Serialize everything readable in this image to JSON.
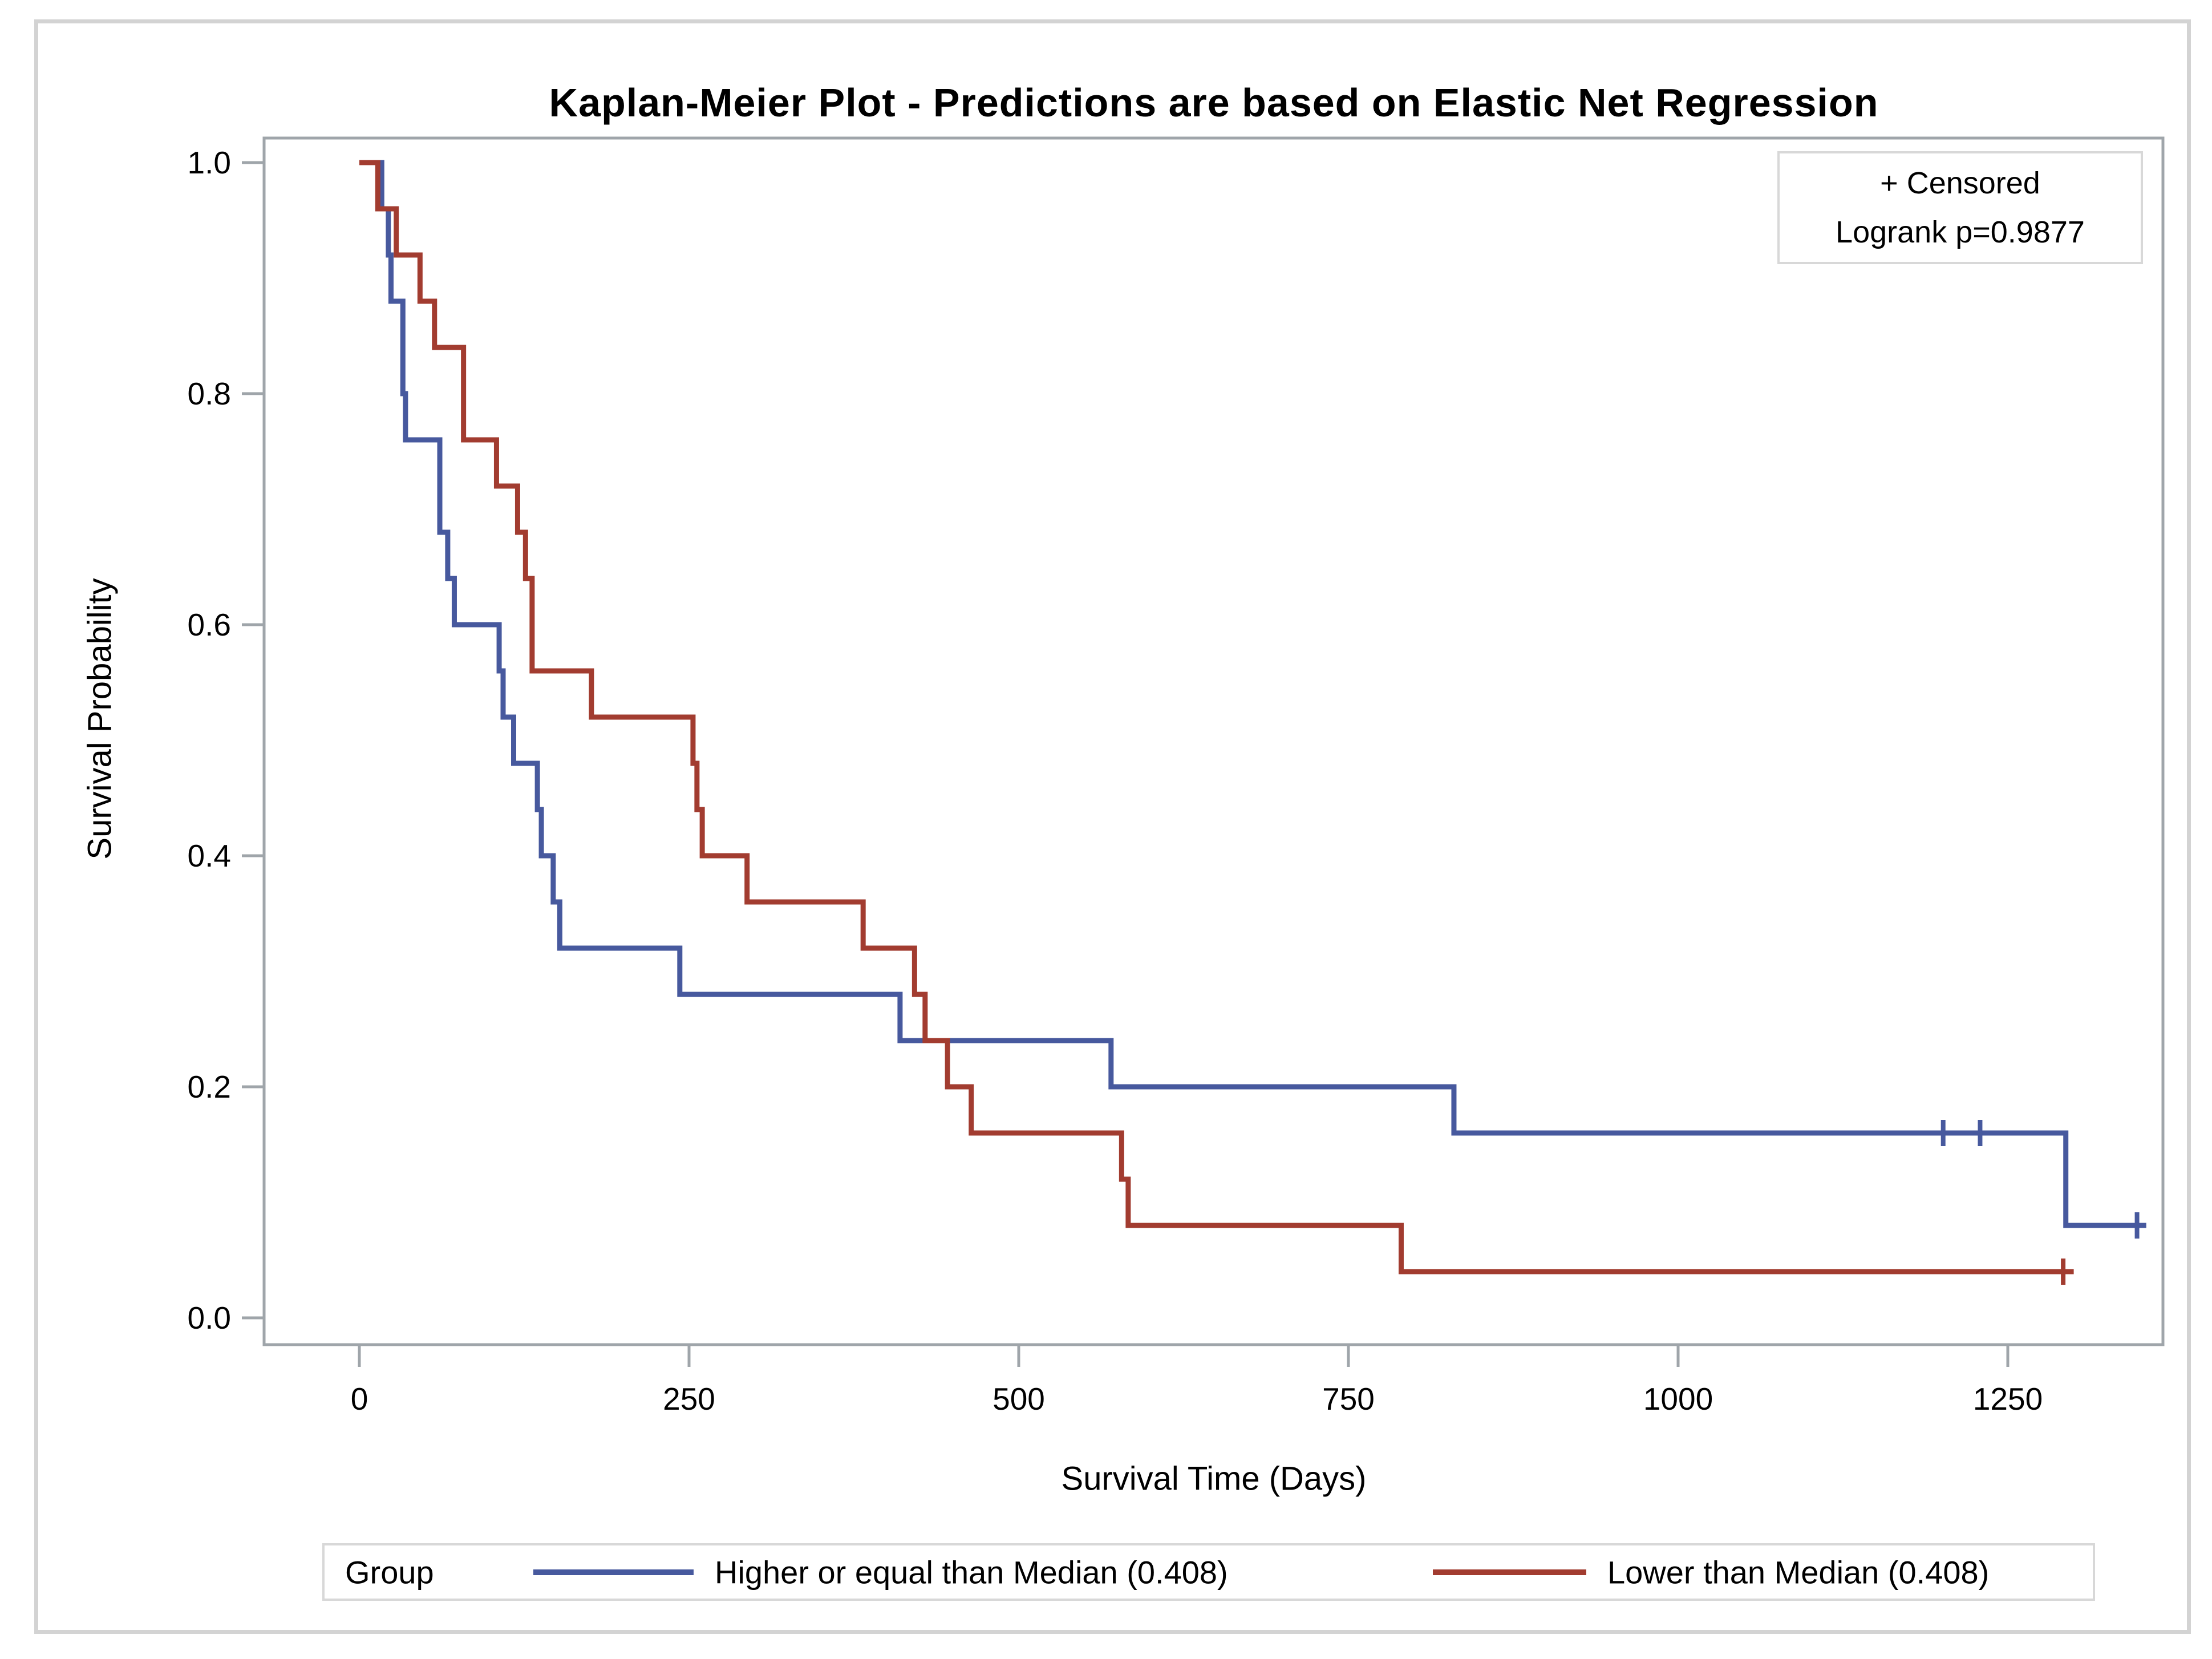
{
  "figure": {
    "title": "Kaplan-Meier Plot - Predictions are based on Elastic Net Regression"
  },
  "inset_legend": {
    "censored_label": "+ Censored",
    "logrank_label": "Logrank p=0.9877"
  },
  "bottom_legend": {
    "group_label": "Group"
  },
  "chart_data": {
    "type": "line",
    "subtype": "kaplan-meier-step",
    "title": "Kaplan-Meier Plot - Predictions are based on Elastic Net Regression",
    "xlabel": "Survival Time (Days)",
    "ylabel": "Survival Probability",
    "xlim": [
      0,
      1368
    ],
    "ylim": [
      0.0,
      1.0
    ],
    "x_ticks": [
      0,
      250,
      500,
      750,
      1000,
      1250
    ],
    "y_ticks": [
      "1.0",
      "0.8",
      "0.6",
      "0.4",
      "0.2",
      "0.0"
    ],
    "grid": false,
    "legend_position": "bottom",
    "series": [
      {
        "name": "Higher or equal than Median (0.408)",
        "color": "#47599E",
        "steps": [
          [
            0,
            1.0
          ],
          [
            17,
            0.96
          ],
          [
            22,
            0.92
          ],
          [
            24,
            0.88
          ],
          [
            33,
            0.8
          ],
          [
            35,
            0.76
          ],
          [
            61,
            0.68
          ],
          [
            67,
            0.64
          ],
          [
            72,
            0.6
          ],
          [
            106,
            0.56
          ],
          [
            109,
            0.52
          ],
          [
            117,
            0.48
          ],
          [
            135,
            0.44
          ],
          [
            138,
            0.4
          ],
          [
            147,
            0.36
          ],
          [
            152,
            0.32
          ],
          [
            243,
            0.28
          ],
          [
            410,
            0.24
          ],
          [
            570,
            0.2
          ],
          [
            830,
            0.16
          ],
          [
            1294,
            0.08
          ]
        ],
        "end_day": 1355,
        "censored": [
          [
            1201,
            0.16
          ],
          [
            1229,
            0.16
          ],
          [
            1348,
            0.08
          ]
        ]
      },
      {
        "name": "Lower than Median (0.408)",
        "color": "#A23C30",
        "steps": [
          [
            0,
            1.0
          ],
          [
            14,
            0.96
          ],
          [
            28,
            0.92
          ],
          [
            46,
            0.88
          ],
          [
            57,
            0.84
          ],
          [
            79,
            0.76
          ],
          [
            104,
            0.72
          ],
          [
            120,
            0.68
          ],
          [
            126,
            0.64
          ],
          [
            131,
            0.56
          ],
          [
            176,
            0.52
          ],
          [
            253,
            0.48
          ],
          [
            256,
            0.44
          ],
          [
            260,
            0.4
          ],
          [
            294,
            0.36
          ],
          [
            382,
            0.32
          ],
          [
            421,
            0.28
          ],
          [
            429,
            0.24
          ],
          [
            446,
            0.2
          ],
          [
            464,
            0.16
          ],
          [
            578,
            0.12
          ],
          [
            583,
            0.08
          ],
          [
            790,
            0.04
          ]
        ],
        "end_day": 1300,
        "censored": [
          [
            1292,
            0.04
          ]
        ]
      }
    ]
  }
}
